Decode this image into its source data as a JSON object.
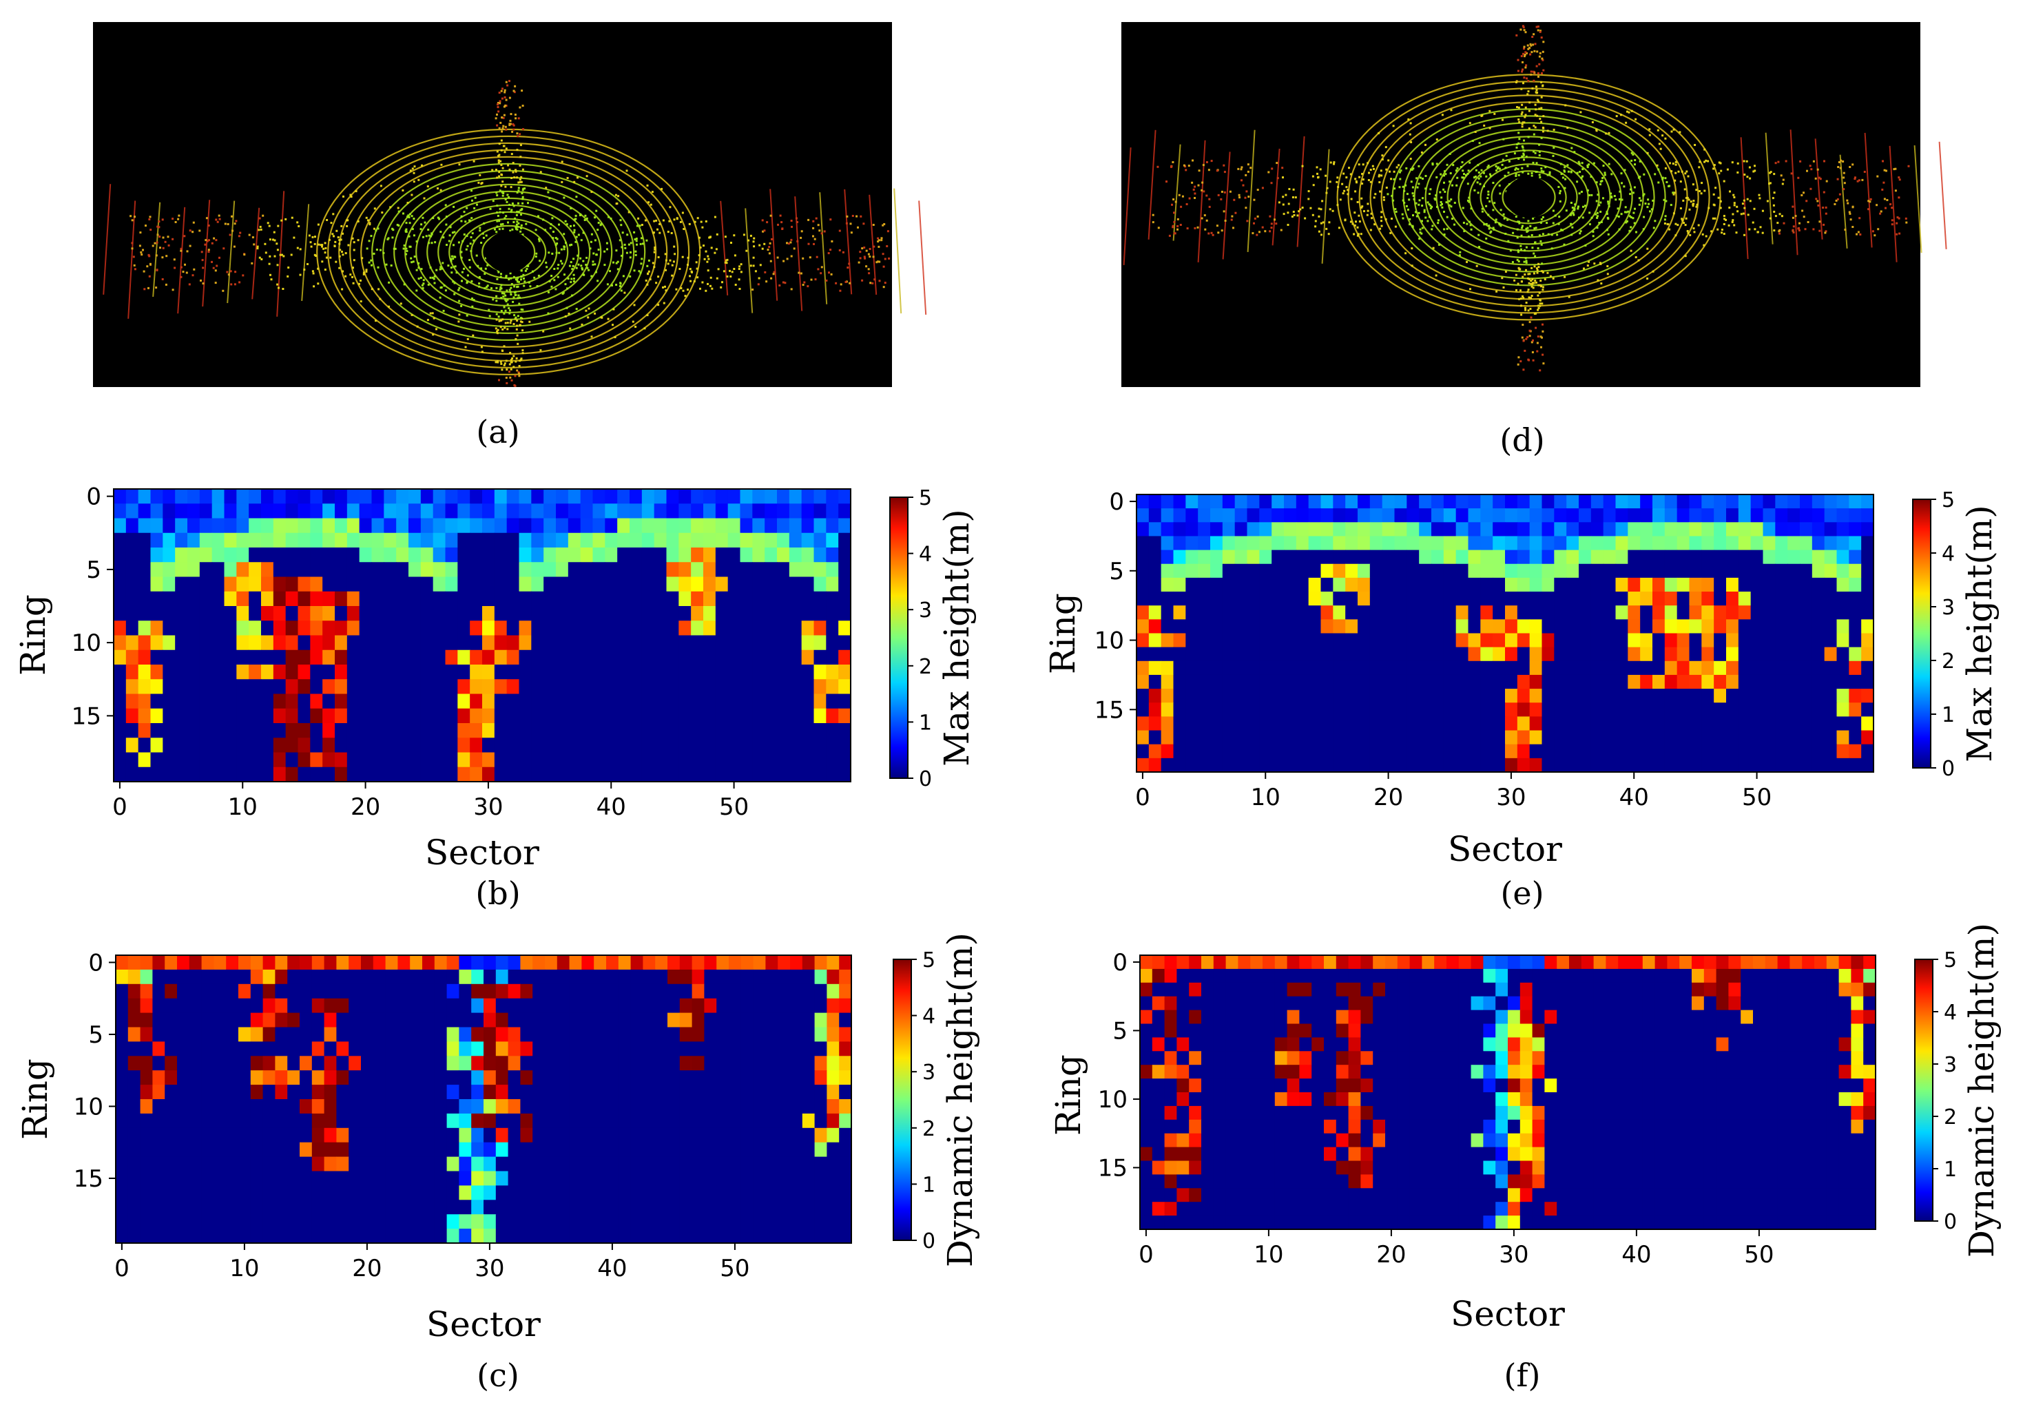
{
  "colors": {
    "background": "#ffffff",
    "lidar_background": "#000000",
    "heatmap_empty": "#00008b"
  },
  "colormap": "jet",
  "panel_captions": {
    "a": "(a)",
    "b": "(b)",
    "c": "(c)",
    "d": "(d)",
    "e": "(e)",
    "f": "(f)"
  },
  "chart_data": [
    {
      "panel": "a",
      "type": "image",
      "caption": "(a)"
    },
    {
      "panel": "d",
      "type": "image",
      "caption": "(d)"
    },
    {
      "panel": "b",
      "type": "heatmap",
      "caption": "(b)",
      "xlabel": "Sector",
      "ylabel": "Ring",
      "colorbar_label": "Max height(m)",
      "x_ticks": [
        "0",
        "10",
        "20",
        "30",
        "40",
        "50"
      ],
      "y_ticks": [
        "0",
        "5",
        "10",
        "15"
      ],
      "colorbar_ticks": [
        "0",
        "1",
        "2",
        "3",
        "4",
        "5"
      ],
      "n_sectors": 60,
      "n_rings": 20,
      "vmin": 0,
      "vmax": 5,
      "cmap": "jet"
    },
    {
      "panel": "e",
      "type": "heatmap",
      "caption": "(e)",
      "xlabel": "Sector",
      "ylabel": "Ring",
      "colorbar_label": "Max height(m)",
      "x_ticks": [
        "0",
        "10",
        "20",
        "30",
        "40",
        "50"
      ],
      "y_ticks": [
        "0",
        "5",
        "10",
        "15"
      ],
      "colorbar_ticks": [
        "0",
        "1",
        "2",
        "3",
        "4",
        "5"
      ],
      "n_sectors": 60,
      "n_rings": 20,
      "vmin": 0,
      "vmax": 5,
      "cmap": "jet"
    },
    {
      "panel": "c",
      "type": "heatmap",
      "caption": "(c)",
      "xlabel": "Sector",
      "ylabel": "Ring",
      "colorbar_label": "Dynamic height(m)",
      "x_ticks": [
        "0",
        "10",
        "20",
        "30",
        "40",
        "50"
      ],
      "y_ticks": [
        "0",
        "5",
        "10",
        "15"
      ],
      "colorbar_ticks": [
        "0",
        "1",
        "2",
        "3",
        "4",
        "5"
      ],
      "n_sectors": 60,
      "n_rings": 20,
      "vmin": 0,
      "vmax": 5,
      "cmap": "jet"
    },
    {
      "panel": "f",
      "type": "heatmap",
      "caption": "(f)",
      "xlabel": "Sector",
      "ylabel": "Ring",
      "colorbar_label": "Dynamic height(m)",
      "x_ticks": [
        "0",
        "10",
        "20",
        "30",
        "40",
        "50"
      ],
      "y_ticks": [
        "0",
        "5",
        "10",
        "15"
      ],
      "colorbar_ticks": [
        "0",
        "1",
        "2",
        "3",
        "4",
        "5"
      ],
      "n_sectors": 60,
      "n_rings": 20,
      "vmin": 0,
      "vmax": 5,
      "cmap": "jet"
    }
  ]
}
